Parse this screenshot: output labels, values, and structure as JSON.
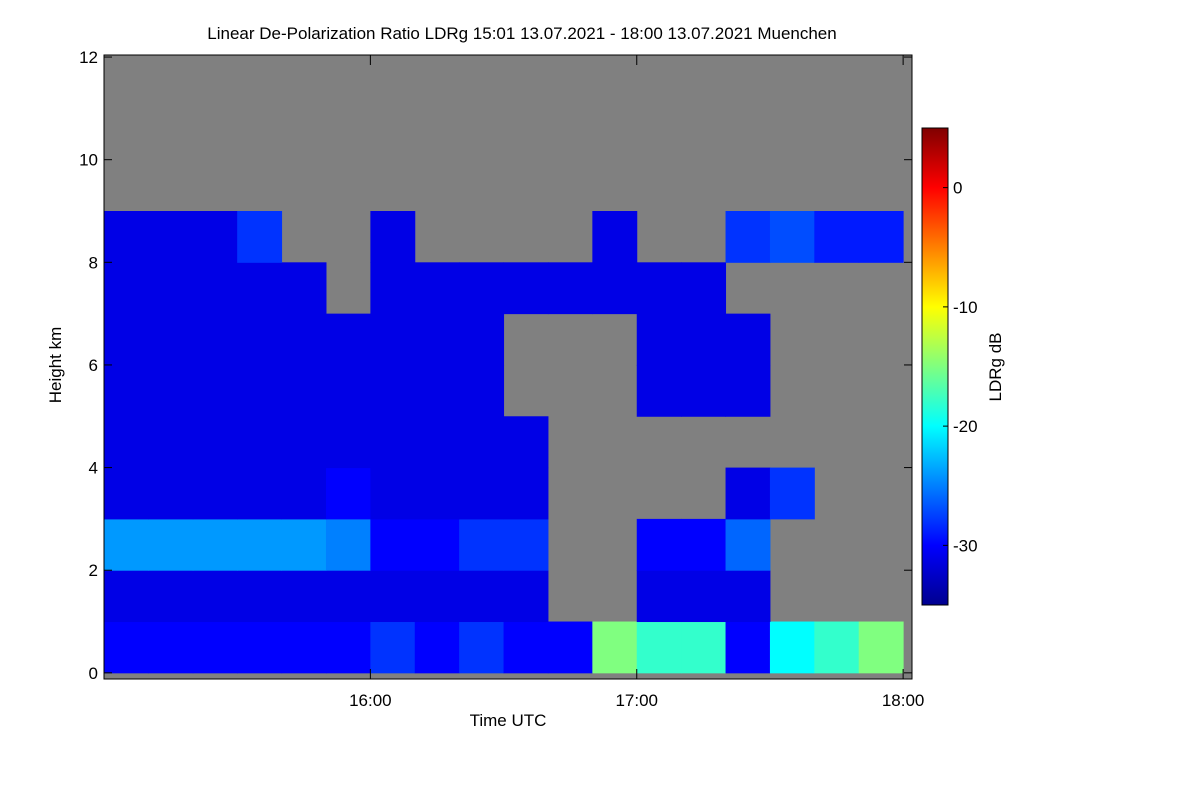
{
  "chart_data": {
    "type": "heatmap",
    "title": "Linear De-Polarization Ratio LDRg   15:01 13.07.2021 - 18:00 13.07.2021 Muenchen",
    "x_label": "Time UTC",
    "y_label": "Height km",
    "colorbar_label": "LDRg dB",
    "colormap": "jet",
    "background_color": "#808080",
    "x": [
      900,
      910,
      920,
      930,
      940,
      950,
      960,
      970,
      980,
      990,
      1000,
      1010,
      1020,
      1030,
      1040,
      1050,
      1060,
      1070,
      1080
    ],
    "y": [
      0,
      1,
      2,
      3,
      4,
      5,
      6,
      7,
      8,
      9,
      10,
      11,
      12
    ],
    "z": [
      [
        -30,
        -30,
        -30,
        -30,
        -30,
        -30,
        -28,
        -30,
        -28,
        -30,
        -30,
        -15,
        -18,
        -18,
        -30,
        -20,
        -18,
        -15
      ],
      [
        -31,
        -31,
        -31,
        -31,
        -31,
        -31,
        -31,
        -31,
        -31,
        -31,
        null,
        null,
        -31,
        -31,
        -31,
        null,
        null,
        null
      ],
      [
        -24,
        -24,
        -24,
        -24,
        -24,
        -25,
        -30,
        -30,
        -28,
        -28,
        null,
        null,
        -30,
        -30,
        -26,
        null,
        null,
        null
      ],
      [
        -31,
        -31,
        -31,
        -31,
        -31,
        -30,
        -31,
        -31,
        -31,
        -31,
        null,
        null,
        null,
        null,
        -31,
        -28,
        null,
        null
      ],
      [
        -31,
        -31,
        -31,
        -31,
        -31,
        -31,
        -31,
        -31,
        -31,
        -31,
        null,
        null,
        null,
        null,
        null,
        null,
        null,
        null
      ],
      [
        -31,
        -31,
        -31,
        -31,
        -31,
        -31,
        -31,
        -31,
        -31,
        null,
        null,
        null,
        -31,
        -31,
        -31,
        null,
        null,
        null
      ],
      [
        -31,
        -31,
        -31,
        -31,
        -31,
        -31,
        -31,
        -31,
        -31,
        null,
        null,
        null,
        -31,
        -31,
        -31,
        null,
        null,
        null
      ],
      [
        -31,
        -31,
        -31,
        -31,
        -31,
        null,
        -31,
        -31,
        -31,
        -31,
        -31,
        -31,
        -31,
        -31,
        null,
        null,
        null,
        null
      ],
      [
        -31,
        -31,
        -31,
        -28,
        null,
        null,
        -31,
        null,
        null,
        null,
        null,
        -31,
        null,
        null,
        -28,
        -27,
        -29,
        -29
      ],
      [
        null,
        null,
        null,
        null,
        null,
        null,
        null,
        null,
        null,
        null,
        null,
        null,
        null,
        null,
        null,
        null,
        null,
        null
      ],
      [
        null,
        null,
        null,
        null,
        null,
        null,
        null,
        null,
        null,
        null,
        null,
        null,
        null,
        null,
        null,
        null,
        null,
        null
      ],
      [
        null,
        null,
        null,
        null,
        null,
        null,
        null,
        null,
        null,
        null,
        null,
        null,
        null,
        null,
        null,
        null,
        null,
        null
      ]
    ],
    "xlim": [
      900,
      1082
    ],
    "ylim": [
      -0.12,
      12.04
    ],
    "xticks": [
      {
        "value": 960,
        "label": "16:00"
      },
      {
        "value": 1020,
        "label": "17:00"
      },
      {
        "value": 1080,
        "label": "18:00"
      }
    ],
    "yticks": [
      0,
      2,
      4,
      6,
      8,
      10,
      12
    ],
    "clim": [
      -35,
      5
    ],
    "cticks": [
      0,
      -10,
      -20,
      -30
    ]
  }
}
